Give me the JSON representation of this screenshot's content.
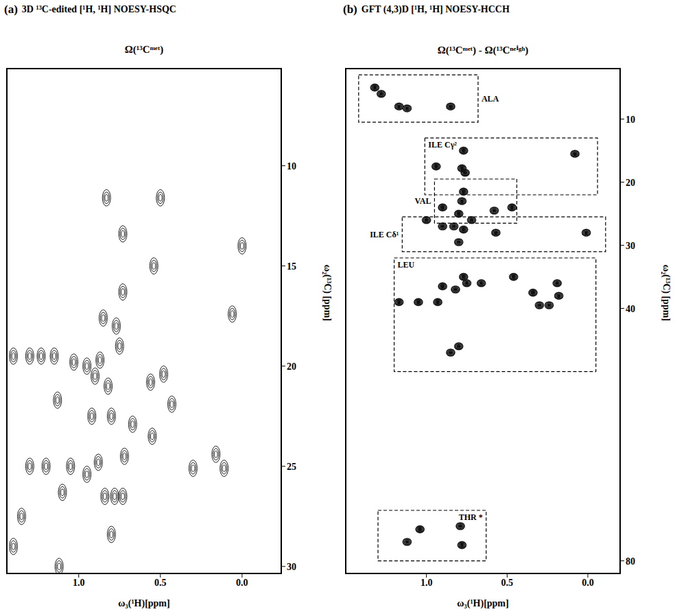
{
  "chart_data": [
    {
      "type": "scatter",
      "panel": "(a)",
      "title": "3D ¹³C-edited [¹H, ¹H] NOESY-HSQC",
      "subtitle": "Ω(¹³Cᵐᵉᵗ)",
      "x_label": "ω₃(¹H)[ppm]",
      "y_label": "ω₂(¹³C) [ppm]",
      "xlim": [
        1.44,
        -0.24
      ],
      "ylim": [
        30.35,
        5.15
      ],
      "xticks": [
        {
          "value": 1,
          "label": "1.0"
        },
        {
          "value": 0.5,
          "label": "0.5"
        },
        {
          "value": 0,
          "label": "0.0"
        }
      ],
      "yticks": [
        10,
        15,
        20,
        25,
        30
      ],
      "color": "#222222",
      "x": [
        0.73,
        0.0,
        0.54,
        0.06,
        0.85,
        0.87,
        0.77,
        0.75,
        0.48,
        0.56,
        1.13,
        0.43,
        0.55,
        0.67,
        0.16,
        0.3,
        0.11,
        1.1,
        0.84,
        1.12,
        1.4,
        1.3,
        1.23,
        1.15,
        1.03,
        0.95,
        0.9,
        1.3,
        1.2,
        1.05,
        0.95,
        0.88,
        1.4,
        1.35,
        0.92,
        0.8,
        0.72,
        0.82,
        0.78,
        0.73,
        0.8,
        0.83,
        0.5,
        0.73
      ],
      "values": [
        13.4,
        14.0,
        15.0,
        17.4,
        17.6,
        19.7,
        18.0,
        19.0,
        20.4,
        20.8,
        21.7,
        21.9,
        23.5,
        22.9,
        24.4,
        25.1,
        25.1,
        26.3,
        26.5,
        30.0,
        19.5,
        19.5,
        19.5,
        19.5,
        19.8,
        20.0,
        20.5,
        25.0,
        25.0,
        25.0,
        25.4,
        24.8,
        29.0,
        27.5,
        22.5,
        22.5,
        24.5,
        21.0,
        26.5,
        26.5,
        28.4,
        11.6,
        11.6,
        16.3
      ]
    },
    {
      "type": "scatter",
      "panel": "(b)",
      "title": "GFT (4,3)D [¹H, ¹H] NOESY-HCCH",
      "subtitle": "Ω(¹³Cᵐᵉᵗ) - Ω(¹³Cⁿᵉⁱᵍʰ)",
      "x_label": "ω₃(¹H)[ppm]",
      "y_label": "ω₂(¹³C) [ppm]",
      "xlim": [
        1.5,
        -0.2
      ],
      "ylim": [
        82,
        2
      ],
      "xticks": [
        {
          "value": 1,
          "label": "1.0"
        },
        {
          "value": 0.5,
          "label": "0.5"
        },
        {
          "value": 0,
          "label": "0.0"
        }
      ],
      "yticks": [
        10,
        20,
        30,
        40,
        80
      ],
      "color": "#111111",
      "x": [
        1.32,
        1.28,
        1.17,
        1.12,
        0.85,
        0.77,
        0.94,
        0.78,
        0.76,
        0.08,
        0.77,
        0.9,
        0.78,
        0.8,
        0.72,
        0.58,
        0.47,
        1.0,
        0.9,
        0.83,
        0.77,
        0.57,
        0.8,
        0.01,
        0.77,
        0.75,
        0.9,
        0.82,
        0.66,
        0.46,
        0.34,
        0.19,
        0.18,
        1.17,
        1.05,
        0.93,
        0.3,
        0.24,
        0.85,
        0.8,
        1.12,
        1.04,
        0.79,
        0.78
      ],
      "values": [
        5,
        6,
        8,
        8.3,
        8,
        15,
        17.5,
        17.8,
        18.5,
        15.5,
        21.5,
        24,
        23,
        25,
        26,
        24.5,
        24,
        26,
        27,
        27,
        27.5,
        28,
        29.5,
        28,
        35,
        36,
        36.5,
        37,
        36,
        35,
        37.5,
        36,
        38,
        39,
        39,
        39,
        39.5,
        39.5,
        47,
        46,
        77,
        75,
        74.5,
        77.5
      ],
      "annotations": [
        {
          "label": "ALA",
          "x": [
            1.42,
            0.68
          ],
          "y": [
            3,
            10.5
          ]
        },
        {
          "label": "ILE Cγ²",
          "x": [
            1.01,
            -0.06
          ],
          "y": [
            13,
            22
          ]
        },
        {
          "label": "VAL",
          "x": [
            0.95,
            0.44
          ],
          "y": [
            19.5,
            26.5
          ]
        },
        {
          "label": "ILE Cδ¹",
          "x": [
            1.15,
            -0.11
          ],
          "y": [
            25.5,
            31
          ]
        },
        {
          "label": "LEU",
          "x": [
            1.2,
            -0.05
          ],
          "y": [
            32,
            50
          ]
        },
        {
          "label": "THR *",
          "x": [
            1.3,
            0.63
          ],
          "y": [
            72,
            80
          ]
        }
      ]
    }
  ]
}
